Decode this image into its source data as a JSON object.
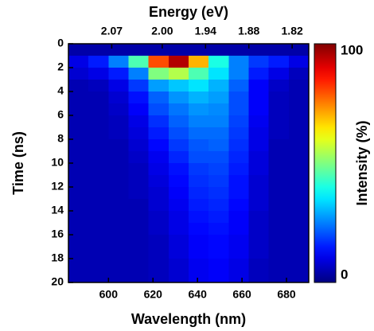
{
  "chart_data": {
    "type": "heatmap",
    "xlabel": "Wavelength (nm)",
    "ylabel": "Time (ns)",
    "x2label": "Energy (eV)",
    "xlim": [
      582,
      690
    ],
    "xticks": [
      600,
      620,
      640,
      660,
      680
    ],
    "x2lim": [
      2.13,
      1.797
    ],
    "x2ticks": [
      2.07,
      {
        "value": 2.0,
        "label": "2.00"
      },
      1.94,
      1.88,
      1.82
    ],
    "ylim": [
      20,
      0
    ],
    "yticks": [
      0,
      2,
      4,
      6,
      8,
      10,
      12,
      14,
      16,
      18,
      20
    ],
    "xbins": [
      582,
      591,
      600,
      609,
      618,
      627,
      636,
      645,
      654,
      663,
      672,
      681,
      690
    ],
    "ybins": [
      0,
      1,
      2,
      3,
      4,
      5,
      6,
      7,
      8,
      9,
      10,
      11,
      12,
      13,
      14,
      15,
      16,
      17,
      18,
      19,
      20
    ],
    "z": [
      [
        4,
        4,
        4,
        4,
        4,
        4,
        4,
        4,
        4,
        4,
        4,
        4
      ],
      [
        10,
        15,
        25,
        45,
        80,
        95,
        70,
        40,
        25,
        18,
        15,
        10
      ],
      [
        8,
        10,
        15,
        25,
        50,
        55,
        45,
        35,
        25,
        15,
        10,
        6
      ],
      [
        5,
        6,
        10,
        18,
        28,
        32,
        35,
        30,
        22,
        12,
        7,
        5
      ],
      [
        5,
        5,
        8,
        14,
        22,
        27,
        30,
        28,
        20,
        12,
        6,
        5
      ],
      [
        5,
        5,
        7,
        12,
        20,
        24,
        27,
        26,
        20,
        12,
        6,
        5
      ],
      [
        5,
        5,
        6,
        10,
        17,
        22,
        25,
        25,
        19,
        11,
        6,
        5
      ],
      [
        5,
        5,
        6,
        9,
        15,
        20,
        23,
        23,
        18,
        10,
        6,
        5
      ],
      [
        5,
        5,
        5,
        8,
        13,
        18,
        21,
        22,
        17,
        10,
        5,
        5
      ],
      [
        5,
        5,
        5,
        7,
        11,
        16,
        20,
        20,
        16,
        9,
        5,
        5
      ],
      [
        5,
        5,
        5,
        6,
        10,
        14,
        18,
        19,
        15,
        9,
        5,
        5
      ],
      [
        5,
        5,
        5,
        6,
        9,
        13,
        17,
        18,
        14,
        8,
        5,
        5
      ],
      [
        5,
        5,
        5,
        6,
        8,
        12,
        16,
        17,
        14,
        8,
        5,
        5
      ],
      [
        5,
        5,
        5,
        5,
        8,
        11,
        15,
        16,
        13,
        8,
        5,
        5
      ],
      [
        5,
        5,
        5,
        5,
        7,
        10,
        14,
        15,
        12,
        7,
        5,
        5
      ],
      [
        5,
        5,
        5,
        5,
        7,
        10,
        13,
        14,
        12,
        7,
        5,
        5
      ],
      [
        5,
        5,
        5,
        5,
        6,
        9,
        12,
        13,
        11,
        7,
        5,
        5
      ],
      [
        5,
        5,
        5,
        5,
        6,
        9,
        12,
        13,
        11,
        7,
        5,
        5
      ],
      [
        5,
        5,
        5,
        5,
        6,
        8,
        11,
        12,
        10,
        6,
        5,
        5
      ],
      [
        5,
        5,
        5,
        5,
        6,
        8,
        11,
        12,
        10,
        6,
        5,
        5
      ]
    ],
    "colormap": "jet",
    "colorbar": {
      "label": "Intensity (%)",
      "lim": [
        0,
        100
      ],
      "ticks": [
        0,
        100
      ]
    }
  }
}
